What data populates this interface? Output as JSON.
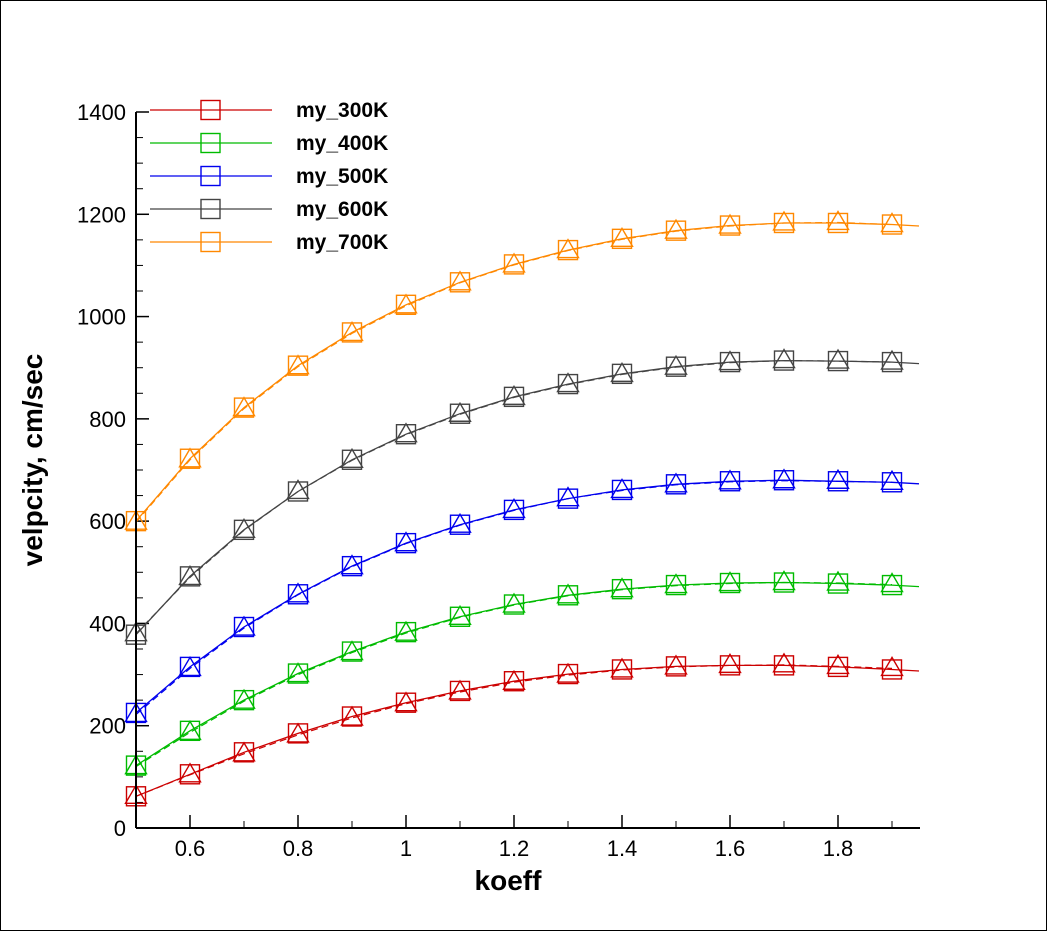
{
  "chart_data": {
    "type": "line",
    "title": "",
    "xlabel": "koeff",
    "ylabel": "velpcity, cm/sec",
    "xlim": [
      0.5,
      1.95
    ],
    "ylim": [
      0,
      1400
    ],
    "xticks": [
      0.6,
      0.8,
      1,
      1.2,
      1.4,
      1.6,
      1.8
    ],
    "xtick_labels": [
      "0.6",
      "0.8",
      "1",
      "1.2",
      "1.4",
      "1.6",
      "1.8"
    ],
    "yticks": [
      0,
      200,
      400,
      600,
      800,
      1000,
      1200,
      1400
    ],
    "ytick_labels": [
      "0",
      "200",
      "400",
      "600",
      "800",
      "1000",
      "1200",
      "1400"
    ],
    "grid": false,
    "legend_position": "top-left",
    "x": [
      0.5,
      0.6,
      0.7,
      0.8,
      0.9,
      1.0,
      1.1,
      1.2,
      1.3,
      1.4,
      1.5,
      1.6,
      1.7,
      1.8,
      1.9
    ],
    "series": [
      {
        "name": "my_300K",
        "color": "#cc0000",
        "marker": "square",
        "values": [
          62,
          105,
          148,
          185,
          218,
          245,
          268,
          287,
          301,
          310,
          316,
          318,
          318,
          315,
          310
        ]
      },
      {
        "name": "my_400K",
        "color": "#00bb00",
        "marker": "square",
        "values": [
          122,
          190,
          250,
          302,
          345,
          383,
          413,
          437,
          455,
          467,
          475,
          479,
          480,
          478,
          475
        ]
      },
      {
        "name": "my_500K",
        "color": "#0000ee",
        "marker": "square",
        "values": [
          225,
          315,
          393,
          457,
          512,
          557,
          593,
          622,
          644,
          661,
          672,
          678,
          680,
          678,
          676
        ]
      },
      {
        "name": "my_600K",
        "color": "#444444",
        "marker": "square",
        "values": [
          378,
          492,
          583,
          658,
          720,
          770,
          810,
          843,
          868,
          888,
          902,
          911,
          914,
          913,
          911
        ]
      },
      {
        "name": "my_700K",
        "color": "#ff8800",
        "marker": "square",
        "values": [
          600,
          722,
          822,
          904,
          969,
          1023,
          1067,
          1102,
          1130,
          1152,
          1168,
          1178,
          1183,
          1183,
          1180
        ]
      }
    ],
    "overlay_series": {
      "marker": "triangle",
      "style": "dashed",
      "values_by_series": [
        [
          62,
          104,
          145,
          182,
          215,
          243,
          266,
          285,
          299,
          309,
          315,
          318,
          319,
          316,
          312
        ],
        [
          120,
          187,
          248,
          300,
          343,
          381,
          412,
          436,
          454,
          466,
          474,
          478,
          480,
          479,
          476
        ],
        [
          222,
          312,
          391,
          456,
          511,
          556,
          592,
          621,
          644,
          660,
          671,
          677,
          679,
          678,
          676
        ],
        [
          380,
          490,
          582,
          658,
          719,
          769,
          809,
          842,
          867,
          887,
          901,
          910,
          914,
          913,
          911
        ],
        [
          598,
          720,
          820,
          902,
          967,
          1021,
          1066,
          1101,
          1129,
          1151,
          1167,
          1177,
          1183,
          1184,
          1180
        ]
      ]
    }
  }
}
